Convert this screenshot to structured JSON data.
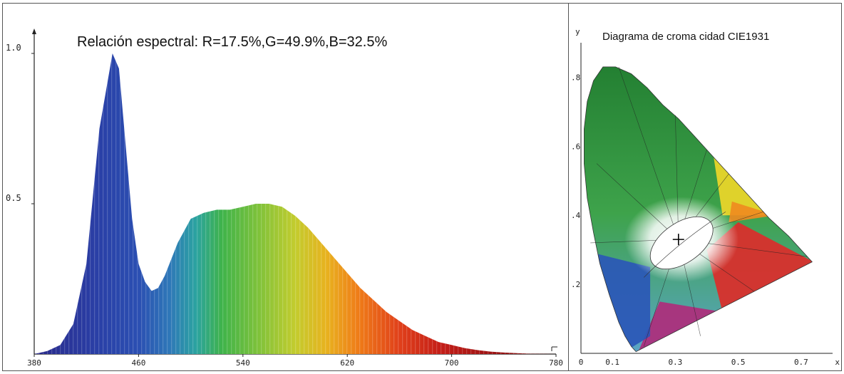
{
  "spectrum": {
    "title": "Relación espectral: R=17.5%,G=49.9%,B=32.5%",
    "chart_data": {
      "type": "area",
      "title": "Relación espectral: R=17.5%,G=49.9%,B=32.5%",
      "xlabel": "",
      "ylabel": "",
      "xlim": [
        380,
        780
      ],
      "ylim": [
        0,
        1.0
      ],
      "x_ticks": [
        "380",
        "460",
        "540",
        "620",
        "700",
        "780"
      ],
      "y_ticks": [
        "0.5",
        "1.0"
      ],
      "grid": false,
      "x": [
        380,
        390,
        400,
        410,
        420,
        430,
        440,
        445,
        450,
        455,
        460,
        465,
        470,
        475,
        480,
        490,
        500,
        510,
        520,
        530,
        540,
        550,
        560,
        570,
        580,
        590,
        600,
        610,
        620,
        630,
        640,
        650,
        660,
        670,
        680,
        690,
        700,
        710,
        720,
        730,
        740,
        750,
        760,
        770,
        780
      ],
      "values": [
        0,
        0.01,
        0.03,
        0.1,
        0.3,
        0.75,
        1.0,
        0.95,
        0.7,
        0.45,
        0.3,
        0.24,
        0.21,
        0.22,
        0.26,
        0.37,
        0.45,
        0.47,
        0.48,
        0.48,
        0.49,
        0.5,
        0.5,
        0.49,
        0.46,
        0.42,
        0.37,
        0.32,
        0.27,
        0.22,
        0.18,
        0.14,
        0.11,
        0.08,
        0.06,
        0.04,
        0.03,
        0.02,
        0.013,
        0.008,
        0.005,
        0.003,
        0.001,
        0.0005,
        0
      ]
    }
  },
  "cie": {
    "title": "Diagrama de croma  cidad CIE1931",
    "chart_data": {
      "type": "scatter",
      "title": "Diagrama de croma  cidad CIE1931",
      "xlabel": "x",
      "ylabel": "y",
      "xlim": [
        0,
        0.8
      ],
      "ylim": [
        0,
        0.9
      ],
      "x_ticks": [
        "0",
        "0.1",
        "0.3",
        "0.5",
        "0.7"
      ],
      "y_ticks": [
        ".2",
        ".4",
        ".6",
        ".8"
      ],
      "x": [
        0.31
      ],
      "y": [
        0.33
      ]
    }
  }
}
